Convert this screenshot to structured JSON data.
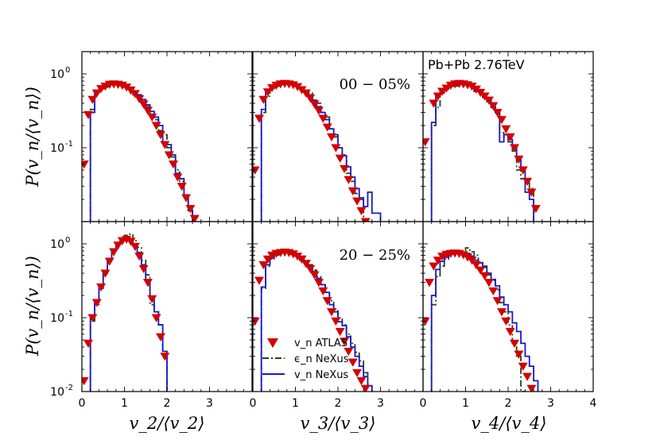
{
  "chart_data": {
    "type": "scatter",
    "system_label": "Pb+Pb 2.76TeV",
    "ylabel": "P(v_n/⟨v_n⟩)",
    "y_scale": "log",
    "ylim": [
      0.01,
      2.0
    ],
    "y_tick_labels": [
      "10",
      "10",
      "10"
    ],
    "y_tick_exponents": [
      "-2",
      "-1",
      "0"
    ],
    "y_tick_values": [
      0.01,
      0.1,
      1.0
    ],
    "x_ticks_shared": [
      "0",
      "1",
      "2",
      "3",
      "4"
    ],
    "legend": {
      "atlas": "v_n ATLAS",
      "eps": "ϵ_n NeXus",
      "vnex": "v_n NeXus",
      "colors": {
        "atlas": "#d40000",
        "eps": "#1a4a0e",
        "vnex": "#1818c8"
      }
    },
    "columns": [
      {
        "xlabel": "v_2/⟨v_2⟩",
        "xlim": [
          0,
          3.5
        ],
        "xticks": [
          0,
          1,
          2,
          3
        ],
        "xtick_labels": [
          "0",
          "1",
          "2",
          "3"
        ]
      },
      {
        "xlabel": "v_3/⟨v_3⟩",
        "xlim": [
          0,
          3.5
        ],
        "xticks": [
          0,
          1,
          2,
          3
        ],
        "xtick_labels": [
          "0",
          "1",
          "2",
          "3"
        ]
      },
      {
        "xlabel": "v_4/⟨v_4⟩",
        "xlim": [
          0,
          3.5
        ],
        "xticks": [
          0,
          1,
          2,
          3,
          4
        ],
        "xtick_labels": [
          "0",
          "1",
          "2",
          "3",
          "4"
        ]
      }
    ],
    "rows": [
      {
        "centrality": "00 − 05%"
      },
      {
        "centrality": "20 − 25%"
      }
    ],
    "panels": [
      {
        "row": 0,
        "col": 0,
        "atlas": {
          "x": [
            0.05,
            0.15,
            0.25,
            0.35,
            0.45,
            0.55,
            0.65,
            0.75,
            0.85,
            0.95,
            1.05,
            1.15,
            1.25,
            1.35,
            1.45,
            1.55,
            1.65,
            1.75,
            1.85,
            1.95,
            2.05,
            2.15,
            2.25,
            2.35,
            2.45,
            2.55,
            2.65,
            2.75
          ],
          "y": [
            0.06,
            0.28,
            0.45,
            0.55,
            0.63,
            0.68,
            0.72,
            0.73,
            0.72,
            0.7,
            0.66,
            0.6,
            0.54,
            0.46,
            0.39,
            0.32,
            0.26,
            0.2,
            0.15,
            0.11,
            0.08,
            0.06,
            0.04,
            0.03,
            0.021,
            0.015,
            0.011,
            0.008
          ]
        },
        "eps": {
          "edges": [
            0.2,
            0.3,
            0.4,
            0.5,
            0.6,
            0.7,
            0.8,
            0.9,
            1.0,
            1.1,
            1.2,
            1.3,
            1.4,
            1.5,
            1.6,
            1.7,
            1.8,
            1.9,
            2.0,
            2.1,
            2.2,
            2.3,
            2.4,
            2.5,
            2.6,
            2.7
          ],
          "values": [
            0.33,
            0.52,
            0.62,
            0.66,
            0.7,
            0.72,
            0.73,
            0.72,
            0.66,
            0.62,
            0.52,
            0.5,
            0.4,
            0.36,
            0.28,
            0.24,
            0.17,
            0.15,
            0.1,
            0.075,
            0.05,
            0.035,
            0.022,
            0.015,
            0.008
          ]
        },
        "vnex": {
          "edges": [
            0.2,
            0.3,
            0.4,
            0.5,
            0.6,
            0.7,
            0.8,
            0.9,
            1.0,
            1.1,
            1.2,
            1.3,
            1.4,
            1.5,
            1.6,
            1.7,
            1.8,
            1.9,
            2.0,
            2.1,
            2.2,
            2.3,
            2.4,
            2.5,
            2.6,
            2.7
          ],
          "values": [
            0.3,
            0.55,
            0.63,
            0.68,
            0.72,
            0.74,
            0.75,
            0.74,
            0.7,
            0.66,
            0.58,
            0.52,
            0.45,
            0.38,
            0.31,
            0.26,
            0.2,
            0.12,
            0.11,
            0.08,
            0.045,
            0.038,
            0.022,
            0.014,
            0.008
          ]
        }
      },
      {
        "row": 0,
        "col": 1,
        "atlas": {
          "x": [
            0.05,
            0.15,
            0.25,
            0.35,
            0.45,
            0.55,
            0.65,
            0.75,
            0.85,
            0.95,
            1.05,
            1.15,
            1.25,
            1.35,
            1.45,
            1.55,
            1.65,
            1.75,
            1.85,
            1.95,
            2.05,
            2.15,
            2.25,
            2.35,
            2.45,
            2.55,
            2.65,
            2.75
          ],
          "y": [
            0.05,
            0.25,
            0.45,
            0.57,
            0.65,
            0.7,
            0.73,
            0.74,
            0.73,
            0.71,
            0.67,
            0.61,
            0.55,
            0.47,
            0.39,
            0.32,
            0.25,
            0.19,
            0.14,
            0.1,
            0.072,
            0.052,
            0.037,
            0.026,
            0.019,
            0.014,
            0.01,
            0.007
          ]
        },
        "eps": {
          "edges": [
            0.2,
            0.3,
            0.4,
            0.5,
            0.6,
            0.7,
            0.8,
            0.9,
            1.0,
            1.1,
            1.2,
            1.3,
            1.4,
            1.5,
            1.6,
            1.7,
            1.8,
            1.9,
            2.0,
            2.1,
            2.2,
            2.3,
            2.4,
            2.5,
            2.6,
            2.7
          ],
          "values": [
            0.3,
            0.5,
            0.6,
            0.68,
            0.72,
            0.75,
            0.76,
            0.74,
            0.7,
            0.66,
            0.56,
            0.55,
            0.44,
            0.4,
            0.3,
            0.26,
            0.18,
            0.15,
            0.1,
            0.08,
            0.045,
            0.035,
            0.024,
            0.02,
            0.01
          ]
        },
        "vnex": {
          "edges": [
            0.2,
            0.3,
            0.4,
            0.5,
            0.6,
            0.7,
            0.8,
            0.9,
            1.0,
            1.1,
            1.2,
            1.3,
            1.4,
            1.5,
            1.6,
            1.7,
            1.8,
            1.9,
            2.0,
            2.1,
            2.2,
            2.3,
            2.4,
            2.5,
            2.6,
            2.7,
            2.8,
            2.9,
            3.0,
            3.1
          ],
          "values": [
            0.33,
            0.55,
            0.64,
            0.7,
            0.74,
            0.76,
            0.77,
            0.76,
            0.72,
            0.66,
            0.58,
            0.52,
            0.44,
            0.36,
            0.3,
            0.24,
            0.18,
            0.14,
            0.1,
            0.078,
            0.055,
            0.04,
            0.028,
            0.021,
            0.016,
            0.025,
            0.013,
            0.013,
            0.008
          ]
        }
      },
      {
        "row": 0,
        "col": 2,
        "atlas": {
          "x": [
            0.05,
            0.25,
            0.35,
            0.45,
            0.55,
            0.65,
            0.75,
            0.85,
            0.95,
            1.05,
            1.15,
            1.25,
            1.35,
            1.45,
            1.55,
            1.65,
            1.75,
            1.85,
            1.95,
            2.05,
            2.15,
            2.25,
            2.35,
            2.45,
            2.55,
            2.65,
            2.75
          ],
          "y": [
            0.12,
            0.4,
            0.5,
            0.58,
            0.64,
            0.7,
            0.73,
            0.74,
            0.73,
            0.71,
            0.68,
            0.62,
            0.56,
            0.5,
            0.44,
            0.37,
            0.3,
            0.24,
            0.18,
            0.14,
            0.1,
            0.07,
            0.05,
            0.035,
            0.025,
            0.015,
            0.008
          ]
        },
        "eps": {
          "edges": [
            0.2,
            0.3,
            0.4,
            0.5,
            0.6,
            0.7,
            0.8,
            0.9,
            1.0,
            1.1,
            1.2,
            1.3,
            1.4,
            1.5,
            1.6,
            1.7,
            1.8,
            1.9,
            2.0,
            2.1,
            2.2,
            2.3,
            2.4,
            2.5,
            2.6,
            2.7
          ],
          "values": [
            0.2,
            0.35,
            0.58,
            0.62,
            0.7,
            0.68,
            0.75,
            0.78,
            0.72,
            0.72,
            0.62,
            0.55,
            0.52,
            0.42,
            0.36,
            0.3,
            0.16,
            0.14,
            0.12,
            0.09,
            0.05,
            0.038,
            0.035,
            0.028,
            0.008
          ]
        },
        "vnex": {
          "edges": [
            0.2,
            0.3,
            0.4,
            0.5,
            0.6,
            0.7,
            0.8,
            0.9,
            1.0,
            1.1,
            1.2,
            1.3,
            1.4,
            1.5,
            1.6,
            1.7,
            1.8,
            1.9,
            2.0,
            2.1,
            2.2,
            2.3,
            2.4,
            2.5,
            2.6,
            2.7
          ],
          "values": [
            0.22,
            0.5,
            0.55,
            0.65,
            0.72,
            0.7,
            0.76,
            0.74,
            0.75,
            0.7,
            0.58,
            0.6,
            0.48,
            0.45,
            0.35,
            0.3,
            0.12,
            0.15,
            0.13,
            0.1,
            0.07,
            0.05,
            0.025,
            0.02,
            0.008
          ]
        }
      },
      {
        "row": 1,
        "col": 0,
        "atlas": {
          "x": [
            0.05,
            0.15,
            0.25,
            0.35,
            0.45,
            0.55,
            0.65,
            0.75,
            0.85,
            0.95,
            1.05,
            1.15,
            1.25,
            1.35,
            1.45,
            1.55,
            1.65,
            1.75,
            1.85,
            1.95
          ],
          "y": [
            0.014,
            0.045,
            0.1,
            0.16,
            0.26,
            0.4,
            0.58,
            0.78,
            0.96,
            1.1,
            1.15,
            1.08,
            0.92,
            0.68,
            0.46,
            0.3,
            0.18,
            0.1,
            0.055,
            0.03
          ]
        },
        "eps": {
          "edges": [
            0.2,
            0.3,
            0.4,
            0.5,
            0.6,
            0.7,
            0.8,
            0.9,
            1.0,
            1.1,
            1.2,
            1.3,
            1.4,
            1.5,
            1.6,
            1.7,
            1.8,
            1.9,
            2.0
          ],
          "values": [
            0.09,
            0.15,
            0.25,
            0.42,
            0.62,
            0.8,
            0.98,
            1.15,
            1.3,
            1.35,
            1.1,
            0.9,
            0.6,
            0.38,
            0.15,
            0.12,
            0.08,
            0.035
          ]
        },
        "vnex": {
          "edges": [
            0.2,
            0.3,
            0.4,
            0.5,
            0.6,
            0.7,
            0.8,
            0.9,
            1.0,
            1.1,
            1.2,
            1.3,
            1.4,
            1.5,
            1.6,
            1.7,
            1.8,
            1.9,
            2.0
          ],
          "values": [
            0.1,
            0.16,
            0.26,
            0.4,
            0.6,
            0.82,
            1.0,
            1.15,
            1.2,
            1.15,
            1.0,
            0.76,
            0.52,
            0.32,
            0.19,
            0.12,
            0.08,
            0.035
          ]
        }
      },
      {
        "row": 1,
        "col": 1,
        "atlas": {
          "x": [
            0.05,
            0.15,
            0.25,
            0.35,
            0.45,
            0.55,
            0.65,
            0.75,
            0.85,
            0.95,
            1.05,
            1.15,
            1.25,
            1.35,
            1.45,
            1.55,
            1.65,
            1.75,
            1.85,
            1.95,
            2.05,
            2.15,
            2.25,
            2.35,
            2.45,
            2.55,
            2.65,
            2.75
          ],
          "y": [
            0.09,
            0.32,
            0.52,
            0.62,
            0.7,
            0.74,
            0.76,
            0.77,
            0.76,
            0.73,
            0.68,
            0.62,
            0.54,
            0.46,
            0.38,
            0.3,
            0.23,
            0.17,
            0.12,
            0.09,
            0.065,
            0.048,
            0.035,
            0.025,
            0.018,
            0.014,
            0.011,
            0.008
          ]
        },
        "eps": {
          "edges": [
            0.2,
            0.3,
            0.4,
            0.5,
            0.6,
            0.7,
            0.8,
            0.9,
            1.0,
            1.1,
            1.2,
            1.3,
            1.4,
            1.5,
            1.6,
            1.7,
            1.8,
            1.9,
            2.0,
            2.1,
            2.2,
            2.3,
            2.4,
            2.5,
            2.6,
            2.7,
            2.8,
            2.9
          ],
          "values": [
            0.25,
            0.5,
            0.62,
            0.7,
            0.76,
            0.78,
            0.8,
            0.78,
            0.74,
            0.68,
            0.6,
            0.52,
            0.44,
            0.36,
            0.28,
            0.22,
            0.17,
            0.13,
            0.1,
            0.08,
            0.06,
            0.045,
            0.034,
            0.026,
            0.018,
            0.012,
            0.008
          ]
        },
        "vnex": {
          "edges": [
            0.2,
            0.3,
            0.4,
            0.5,
            0.6,
            0.7,
            0.8,
            0.9,
            1.0,
            1.1,
            1.2,
            1.3,
            1.4,
            1.5,
            1.6,
            1.7,
            1.8,
            1.9,
            2.0,
            2.1,
            2.2,
            2.3,
            2.4,
            2.5,
            2.6,
            2.7,
            2.8,
            2.9
          ],
          "values": [
            0.26,
            0.52,
            0.64,
            0.72,
            0.76,
            0.77,
            0.76,
            0.72,
            0.68,
            0.6,
            0.55,
            0.48,
            0.42,
            0.34,
            0.28,
            0.22,
            0.15,
            0.12,
            0.088,
            0.078,
            0.055,
            0.04,
            0.03,
            0.022,
            0.016,
            0.012,
            0.008
          ]
        }
      },
      {
        "row": 1,
        "col": 2,
        "atlas": {
          "x": [
            0.05,
            0.15,
            0.25,
            0.35,
            0.45,
            0.55,
            0.65,
            0.75,
            0.85,
            0.95,
            1.05,
            1.15,
            1.25,
            1.35,
            1.45,
            1.55,
            1.65,
            1.75,
            1.85,
            1.95,
            2.05,
            2.15,
            2.25,
            2.35,
            2.45,
            2.55,
            2.65,
            2.75
          ],
          "y": [
            0.09,
            0.3,
            0.5,
            0.6,
            0.68,
            0.72,
            0.74,
            0.75,
            0.74,
            0.71,
            0.66,
            0.6,
            0.52,
            0.44,
            0.37,
            0.3,
            0.23,
            0.17,
            0.12,
            0.09,
            0.065,
            0.045,
            0.032,
            0.022,
            0.016,
            0.011,
            0.008,
            0.006
          ]
        },
        "eps": {
          "edges": [
            0.2,
            0.3,
            0.4,
            0.5,
            0.6,
            0.7,
            0.8,
            0.9,
            1.0,
            1.1,
            1.2,
            1.3,
            1.4,
            1.5,
            1.6,
            1.7,
            1.8,
            1.9,
            2.0,
            2.1,
            2.2,
            2.3,
            2.4
          ],
          "values": [
            0.15,
            0.36,
            0.5,
            0.62,
            0.7,
            0.76,
            0.78,
            0.8,
            0.88,
            0.78,
            0.7,
            0.56,
            0.5,
            0.38,
            0.32,
            0.24,
            0.16,
            0.12,
            0.08,
            0.045,
            0.03,
            0.01
          ]
        },
        "vnex": {
          "edges": [
            0.2,
            0.3,
            0.4,
            0.5,
            0.6,
            0.7,
            0.8,
            0.9,
            1.0,
            1.1,
            1.2,
            1.3,
            1.4,
            1.5,
            1.6,
            1.7,
            1.8,
            1.9,
            2.0,
            2.1,
            2.2,
            2.3,
            2.4,
            2.5,
            2.6,
            2.7,
            2.8
          ],
          "values": [
            0.2,
            0.45,
            0.58,
            0.66,
            0.72,
            0.74,
            0.75,
            0.75,
            0.74,
            0.68,
            0.6,
            0.55,
            0.48,
            0.4,
            0.33,
            0.27,
            0.19,
            0.15,
            0.12,
            0.085,
            0.065,
            0.045,
            0.03,
            0.022,
            0.014,
            0.008
          ]
        }
      }
    ]
  }
}
